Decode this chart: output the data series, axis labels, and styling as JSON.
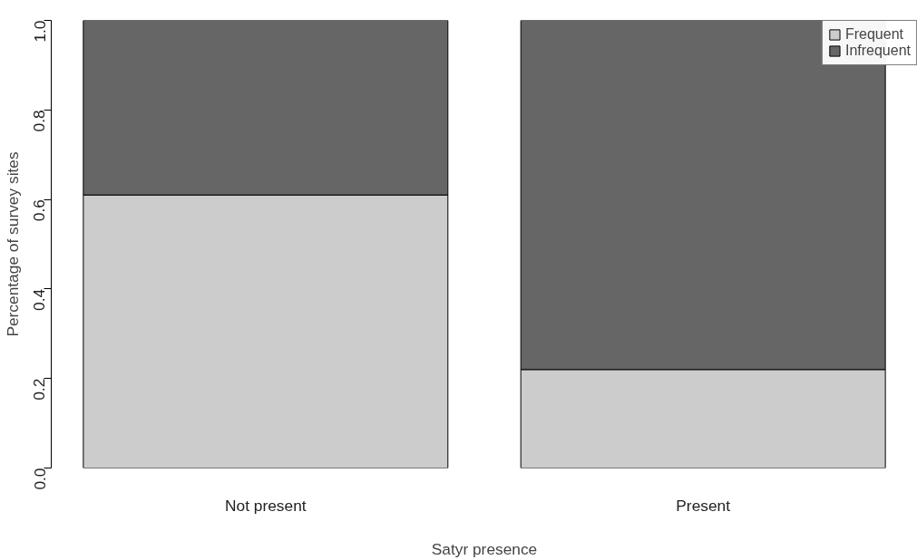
{
  "chart_data": {
    "type": "bar",
    "stacked": true,
    "xlabel": "Satyr presence",
    "ylabel": "Percentage of survey sites",
    "categories": [
      "Not present",
      "Present"
    ],
    "series": [
      {
        "name": "Frequent",
        "color": "#cccccc",
        "values": [
          0.61,
          0.22
        ]
      },
      {
        "name": "Infrequent",
        "color": "#666666",
        "values": [
          0.39,
          0.78
        ]
      }
    ],
    "ylim": [
      0,
      1
    ],
    "yticks": [
      {
        "value": 0,
        "label": "0.0"
      },
      {
        "value": 0.2,
        "label": "0.2"
      },
      {
        "value": 0.4,
        "label": "0.4"
      },
      {
        "value": 0.6,
        "label": "0.6"
      },
      {
        "value": 0.8,
        "label": "0.8"
      },
      {
        "value": 1,
        "label": "1.0"
      }
    ],
    "grid": false,
    "legend": "top right"
  }
}
